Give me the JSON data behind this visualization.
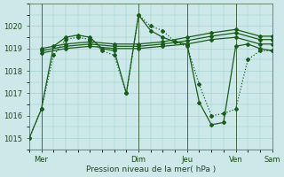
{
  "bg_color": "#cce8e8",
  "grid_color": "#99cccc",
  "line_color": "#1a5c1a",
  "title": "Pression niveau de la mer( hPa )",
  "xlim": [
    0,
    120
  ],
  "ylim": [
    1014.5,
    1021.0
  ],
  "yticks": [
    1015,
    1016,
    1017,
    1018,
    1019,
    1020
  ],
  "xtick_positions": [
    6,
    54,
    78,
    102,
    120
  ],
  "xtick_labels": [
    "Mer",
    "Dim",
    "Jeu",
    "Ven",
    "Sam"
  ],
  "vlines": [
    6,
    54,
    78,
    102
  ],
  "series": [
    {
      "x": [
        0,
        6,
        12,
        18,
        24,
        30,
        36,
        42,
        48,
        54,
        60,
        66,
        72,
        78,
        84,
        90,
        96,
        102,
        108,
        114,
        120
      ],
      "y": [
        1015.0,
        1016.3,
        1019.1,
        1019.5,
        1019.6,
        1019.5,
        1019.0,
        1018.9,
        1017.0,
        1020.5,
        1019.8,
        1019.5,
        1019.3,
        1019.2,
        1016.6,
        1015.6,
        1015.7,
        1019.1,
        1019.2,
        1019.0,
        1018.9
      ],
      "style": "-",
      "marker": "D",
      "markersize": 2.0,
      "linewidth": 0.9
    },
    {
      "x": [
        6,
        18,
        30,
        42,
        54,
        66,
        78,
        90,
        102,
        114,
        120
      ],
      "y": [
        1018.8,
        1019.0,
        1019.1,
        1019.0,
        1019.0,
        1019.1,
        1019.2,
        1019.4,
        1019.5,
        1019.2,
        1019.2
      ],
      "style": "-",
      "marker": "D",
      "markersize": 2.0,
      "linewidth": 0.9
    },
    {
      "x": [
        6,
        18,
        30,
        42,
        54,
        66,
        78,
        90,
        102,
        114,
        120
      ],
      "y": [
        1018.9,
        1019.1,
        1019.2,
        1019.1,
        1019.1,
        1019.2,
        1019.35,
        1019.55,
        1019.7,
        1019.4,
        1019.4
      ],
      "style": "-",
      "marker": "D",
      "markersize": 2.0,
      "linewidth": 0.9
    },
    {
      "x": [
        6,
        18,
        30,
        42,
        54,
        66,
        78,
        90,
        102,
        114,
        120
      ],
      "y": [
        1019.0,
        1019.2,
        1019.3,
        1019.2,
        1019.2,
        1019.3,
        1019.5,
        1019.7,
        1019.85,
        1019.55,
        1019.55
      ],
      "style": "-",
      "marker": "D",
      "markersize": 2.0,
      "linewidth": 0.9
    },
    {
      "x": [
        0,
        6,
        12,
        18,
        24,
        30,
        36,
        42,
        48,
        54,
        60,
        66,
        72,
        78,
        84,
        90,
        96,
        102,
        108,
        114,
        120
      ],
      "y": [
        1015.0,
        1016.3,
        1018.7,
        1019.4,
        1019.5,
        1019.4,
        1018.9,
        1018.7,
        1017.0,
        1020.5,
        1020.0,
        1019.8,
        1019.3,
        1019.1,
        1017.4,
        1016.0,
        1016.1,
        1016.3,
        1018.5,
        1018.9,
        1018.9
      ],
      "style": ":",
      "marker": "D",
      "markersize": 2.0,
      "linewidth": 0.9
    }
  ]
}
